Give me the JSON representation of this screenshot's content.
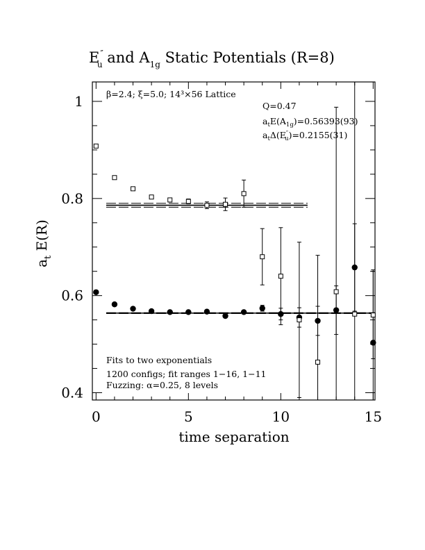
{
  "chart_data": {
    "type": "scatter",
    "title": {
      "part1": "E",
      "part1_sup": "″",
      "part1_sub": "u",
      "part2": "  and  A",
      "part2_sub": "1g",
      "part3": "  Static Potentials (R=8)"
    },
    "xlabel": "time separation",
    "ylabel": {
      "main": "a",
      "sub": "t",
      "rest": " E(R)"
    },
    "xlim": [
      -0.2,
      15.1
    ],
    "ylim": [
      0.385,
      1.04
    ],
    "x_ticks": [
      0,
      5,
      10,
      15
    ],
    "y_ticks": [
      0.4,
      0.6,
      0.8,
      1
    ],
    "y_tick_labels": [
      "0.4",
      "0.6",
      "0.8",
      "1"
    ],
    "x_minor_step": 1,
    "y_minor_step": 0.05,
    "annotations": {
      "lattice": "β=2.4; ξ=5.0; 14³×56 Lattice",
      "q": "Q=0.47",
      "energy_a1g": {
        "pre": "a",
        "pre_sub": "t",
        "mid": "E(A",
        "mid_sub": "1g",
        "post": ")=0.56393(93)"
      },
      "energy_eu": {
        "pre": "a",
        "pre_sub": "t",
        "mid": "Δ(E",
        "mid_sup": "″",
        "mid_sub": "u",
        "post": ")=0.2155(31)"
      },
      "fits": "Fits to two exponentials",
      "configs": "1200 configs; fit ranges 1−16, 1−11",
      "fuzzing": "Fuzzing: α=0.25, 8 levels"
    },
    "series": [
      {
        "marker": "filled-circle",
        "points": [
          {
            "x": 0,
            "y": 0.607,
            "err": 0.003
          },
          {
            "x": 1,
            "y": 0.582,
            "err": 0.002
          },
          {
            "x": 2,
            "y": 0.573,
            "err": 0.002
          },
          {
            "x": 3,
            "y": 0.568,
            "err": 0.002
          },
          {
            "x": 4,
            "y": 0.566,
            "err": 0.002
          },
          {
            "x": 5,
            "y": 0.566,
            "err": 0.002
          },
          {
            "x": 6,
            "y": 0.567,
            "err": 0.002
          },
          {
            "x": 7,
            "y": 0.558,
            "err": 0.003
          },
          {
            "x": 8,
            "y": 0.566,
            "err": 0.003
          },
          {
            "x": 9,
            "y": 0.574,
            "err": 0.006
          },
          {
            "x": 10,
            "y": 0.562,
            "err": 0.012
          },
          {
            "x": 11,
            "y": 0.555,
            "err": 0.02
          },
          {
            "x": 12,
            "y": 0.548,
            "err": 0.03
          },
          {
            "x": 13,
            "y": 0.57,
            "err": 0.05
          },
          {
            "x": 14,
            "y": 0.658,
            "err": 0.09
          },
          {
            "x": 15,
            "y": 0.503,
            "err": 0.15
          }
        ],
        "fit": {
          "x_start": 1,
          "x_end": 15,
          "center": 0.56393,
          "err": 0.00093
        }
      },
      {
        "marker": "open-square",
        "points": [
          {
            "x": 0,
            "y": 0.908,
            "err": 0.003
          },
          {
            "x": 1,
            "y": 0.843,
            "err": 0.003
          },
          {
            "x": 2,
            "y": 0.82,
            "err": 0.003
          },
          {
            "x": 3,
            "y": 0.803,
            "err": 0.003
          },
          {
            "x": 4,
            "y": 0.797,
            "err": 0.004
          },
          {
            "x": 5,
            "y": 0.794,
            "err": 0.005
          },
          {
            "x": 6,
            "y": 0.786,
            "err": 0.007
          },
          {
            "x": 7,
            "y": 0.788,
            "err": 0.013
          },
          {
            "x": 8,
            "y": 0.81,
            "err": 0.028
          },
          {
            "x": 9,
            "y": 0.68,
            "err": 0.058
          },
          {
            "x": 10,
            "y": 0.64,
            "err": 0.1
          },
          {
            "x": 11,
            "y": 0.55,
            "err": 0.16
          },
          {
            "x": 12,
            "y": 0.463,
            "err": 0.22
          },
          {
            "x": 13,
            "y": 0.608,
            "err": 0.38
          },
          {
            "x": 14,
            "y": 0.562,
            "err": 0.53
          },
          {
            "x": 15,
            "y": 0.56,
            "err": 0.09
          }
        ],
        "fit": {
          "x_start": 1,
          "x_end": 11,
          "center": 0.786,
          "err": 0.004
        }
      }
    ],
    "legend": "none",
    "grid": false
  }
}
